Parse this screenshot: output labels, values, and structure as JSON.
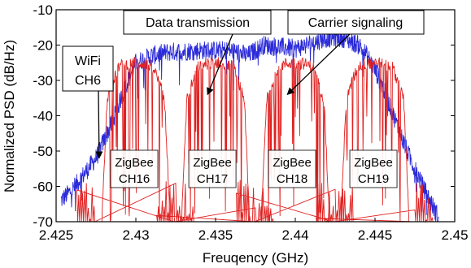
{
  "chart_data": {
    "type": "line",
    "title": "",
    "xlabel": "Freuqency (GHz)",
    "ylabel": "Normalized PSD (dB/Hz)",
    "xlim": [
      2.425,
      2.45
    ],
    "ylim": [
      -70,
      -10
    ],
    "x_ticks": [
      "2.425",
      "2.43",
      "2.435",
      "2.44",
      "2.445",
      "2.45"
    ],
    "y_ticks": [
      "-10",
      "-20",
      "-30",
      "-40",
      "-50",
      "-60",
      "-70"
    ],
    "grid": false,
    "series": [
      {
        "color": "#2a2ad8",
        "x": [
          2.4253,
          2.426,
          2.427,
          2.4275,
          2.428,
          2.4285,
          2.429,
          2.4295,
          2.43,
          2.431,
          2.432,
          2.434,
          2.436,
          2.437,
          2.438,
          2.44,
          2.442,
          2.443,
          2.444,
          2.4445,
          2.445,
          2.4455,
          2.446,
          2.4465,
          2.447,
          2.448,
          2.449
        ],
        "values": [
          -64,
          -61,
          -55,
          -52,
          -47,
          -42,
          -36,
          -30,
          -25,
          -23,
          -22,
          -21.5,
          -21.5,
          -23,
          -20,
          -21,
          -18,
          -18,
          -20,
          -23,
          -27,
          -32,
          -38,
          -44,
          -50,
          -60,
          -69
        ]
      },
      {
        "color": "#e02020",
        "channels": [
          {
            "center": 2.43,
            "peak": -25
          },
          {
            "center": 2.435,
            "peak": -25
          },
          {
            "center": 2.44,
            "peak": -25
          },
          {
            "center": 2.445,
            "peak": -25
          }
        ]
      }
    ],
    "annotations": [
      {
        "text": "Data transmission",
        "target_x": 2.4345,
        "target_y": -34
      },
      {
        "text": "Carrier signaling",
        "target_x": 2.4395,
        "target_y": -34
      },
      {
        "text": "WiFi",
        "text2": "CH6",
        "target_x": 2.4277,
        "target_y": -52
      }
    ],
    "zigbee_labels": [
      {
        "line1": "ZigBee",
        "line2": "CH16",
        "x": 2.4299
      },
      {
        "line1": "ZigBee",
        "line2": "CH17",
        "x": 2.4348
      },
      {
        "line1": "ZigBee",
        "line2": "CH18",
        "x": 2.4398
      },
      {
        "line1": "ZigBee",
        "line2": "CH19",
        "x": 2.4449
      }
    ]
  }
}
